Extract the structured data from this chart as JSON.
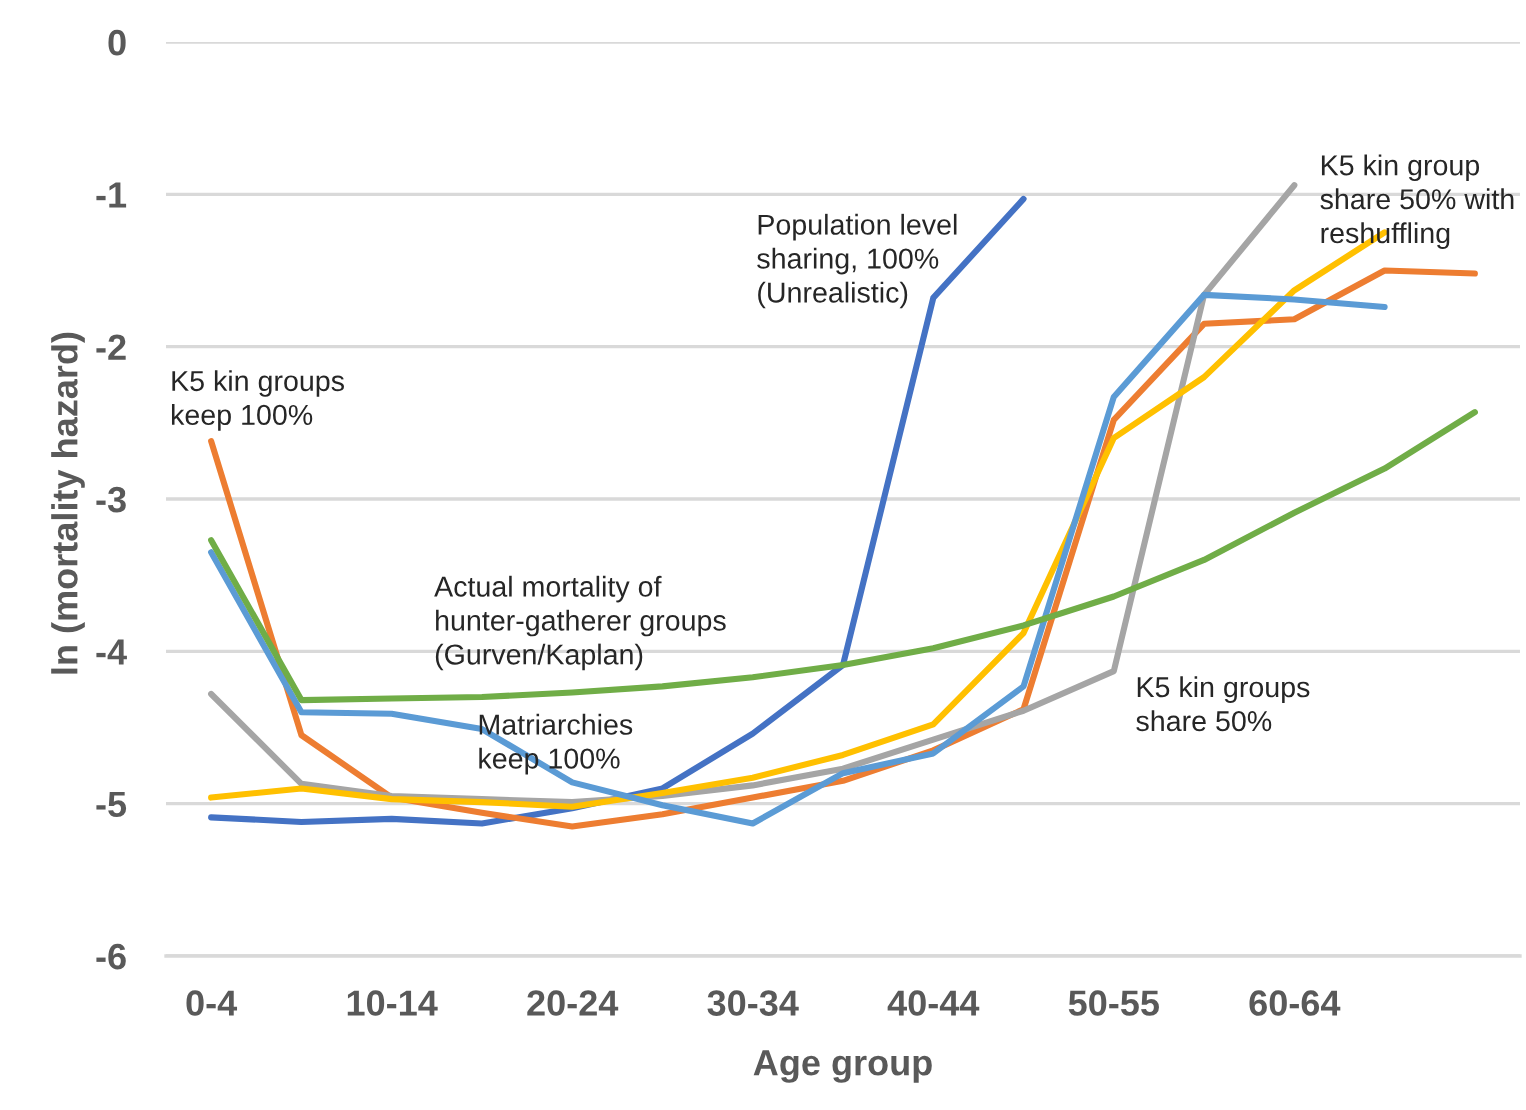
{
  "chart_data": {
    "type": "line",
    "xlabel": "Age group",
    "ylabel": "ln (mortality hazard)",
    "categories": [
      "0-4",
      null,
      "10-14",
      null,
      "20-24",
      null,
      "30-34",
      null,
      "40-44",
      null,
      "50-55",
      null,
      "60-64",
      null,
      null
    ],
    "series": [
      {
        "color": "#4472c4",
        "values": [
          -5.09,
          -5.12,
          -5.1,
          -5.13,
          -5.03,
          -4.9,
          -4.54,
          -4.09,
          -1.68,
          -1.03,
          null,
          null,
          null,
          null,
          null
        ]
      },
      {
        "color": "#ed7d31",
        "values": [
          -2.62,
          -4.55,
          -4.96,
          -5.06,
          -5.15,
          -5.07,
          -4.96,
          -4.85,
          -4.65,
          -4.38,
          -2.48,
          -1.85,
          -1.82,
          -1.5,
          -1.52
        ]
      },
      {
        "color": "#a5a5a5",
        "values": [
          -4.28,
          -4.87,
          -4.95,
          -4.97,
          -4.99,
          -4.95,
          -4.88,
          -4.77,
          -4.58,
          -4.39,
          -4.13,
          -1.66,
          -0.94,
          null,
          null
        ]
      },
      {
        "color": "#ffc000",
        "values": [
          -4.96,
          -4.9,
          -4.97,
          -4.99,
          -5.02,
          -4.93,
          -4.83,
          -4.68,
          -4.48,
          -3.88,
          -2.6,
          -2.2,
          -1.63,
          -1.25,
          null
        ]
      },
      {
        "color": "#5b9bd5",
        "values": [
          -3.35,
          -4.4,
          -4.41,
          -4.51,
          -4.86,
          -5.01,
          -5.13,
          -4.8,
          -4.67,
          -4.23,
          -2.33,
          -1.66,
          -1.69,
          -1.74,
          null
        ]
      },
      {
        "color": "#70ad47",
        "values": [
          -3.27,
          -4.32,
          -4.31,
          -4.3,
          -4.27,
          -4.23,
          -4.17,
          -4.09,
          -3.98,
          -3.83,
          -3.64,
          -3.4,
          -3.09,
          -2.8,
          -2.43
        ]
      }
    ],
    "ylim": [
      -6,
      0
    ],
    "yticks": [
      -6,
      -5,
      -4,
      -3,
      -2,
      -1,
      0
    ],
    "grid": "y",
    "annotations": [
      "K5 kin groups\nkeep 100%",
      "Population level\nsharing, 100%\n(Unrealistic)",
      "K5 kin group\nshare 50% with\nreshuffling",
      "Actual mortality of\nhunter-gatherer groups\n(Gurven/Kaplan)",
      "Matriarchies\nkeep 100%",
      "K5 kin groups\nshare 50%"
    ]
  }
}
